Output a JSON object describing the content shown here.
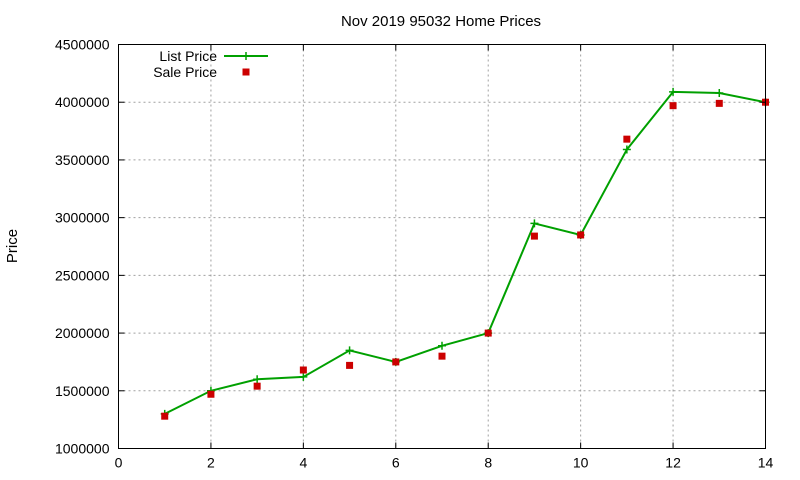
{
  "chart_data": {
    "type": "line",
    "title": "Nov 2019 95032 Home Prices",
    "xlabel": "",
    "ylabel": "Price",
    "xlim": [
      0,
      14
    ],
    "ylim": [
      1000000,
      4500000
    ],
    "x_ticks": [
      "0",
      "2",
      "4",
      "6",
      "8",
      "10",
      "12",
      "14"
    ],
    "y_ticks": [
      "1000000",
      "1500000",
      "2000000",
      "2500000",
      "3000000",
      "3500000",
      "4000000",
      "4500000"
    ],
    "grid": true,
    "legend": "top-left",
    "series": [
      {
        "name": "List Price",
        "kind": "line+cross",
        "color": "#00a000",
        "x": [
          1,
          2,
          3,
          4,
          5,
          6,
          7,
          8,
          9,
          10,
          11,
          12,
          13,
          14
        ],
        "values": [
          1300000,
          1500000,
          1600000,
          1620000,
          1850000,
          1750000,
          1890000,
          2000000,
          2950000,
          2850000,
          3590000,
          4090000,
          4080000,
          4000000
        ]
      },
      {
        "name": "Sale Price",
        "kind": "square",
        "color": "#cc0000",
        "x": [
          1,
          2,
          3,
          4,
          5,
          6,
          7,
          8,
          9,
          10,
          11,
          12,
          13,
          14
        ],
        "values": [
          1280000,
          1470000,
          1540000,
          1680000,
          1720000,
          1750000,
          1800000,
          2000000,
          2840000,
          2850000,
          3680000,
          3970000,
          3990000,
          4000000
        ]
      }
    ]
  }
}
